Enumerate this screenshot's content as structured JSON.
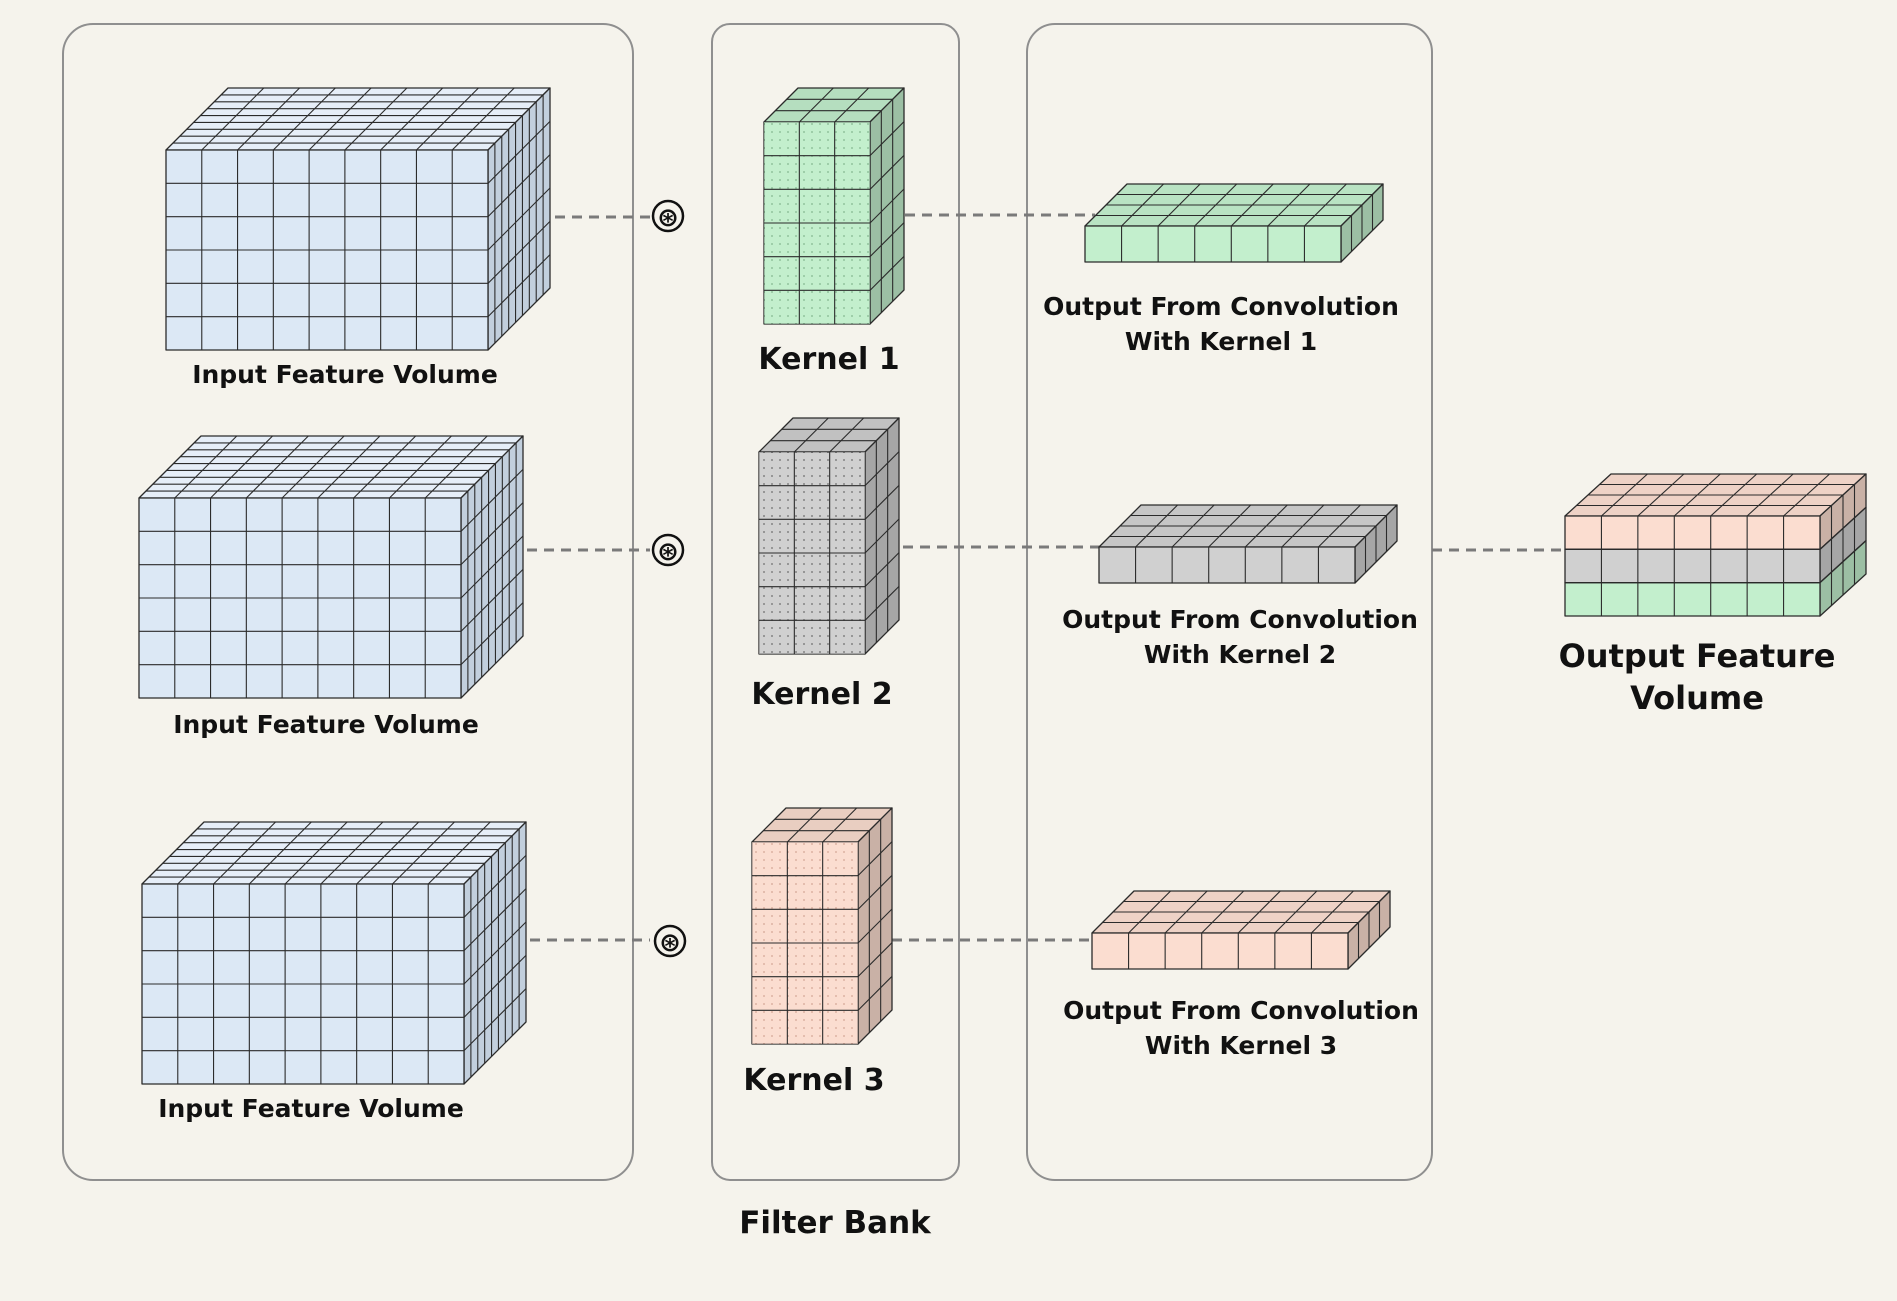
{
  "colors": {
    "background": "#f5f3ec",
    "panel_stroke": "#8f8f8f",
    "input_face": "#dce8f5",
    "input_top": "#e6eef8",
    "input_side": "#c2cfdd",
    "kernel1_face": "#c3efcd",
    "kernel2_face": "#d0d0d0",
    "kernel3_face": "#fbddd0",
    "connector": "#7a7a7a"
  },
  "panels": {
    "input": "input-panel",
    "filter": "filter-bank-panel",
    "output": "output-panel"
  },
  "rows": [
    {
      "input_label": "Input Feature Volume",
      "operator": "⊛",
      "kernel_label": "Kernel 1",
      "output_label_line1": "Output From Convolution",
      "output_label_line2": "With Kernel 1"
    },
    {
      "input_label": "Input Feature Volume",
      "operator": "⊛",
      "kernel_label": "Kernel 2",
      "output_label_line1": "Output From Convolution",
      "output_label_line2": "With Kernel 2"
    },
    {
      "input_label": "Input Feature Volume",
      "operator": "⊛",
      "kernel_label": "Kernel 3",
      "output_label_line1": "Output From Convolution",
      "output_label_line2": "With Kernel 3"
    }
  ],
  "filter_bank_label": "Filter Bank",
  "final_output": {
    "label_line1": "Output Feature",
    "label_line2": "Volume"
  }
}
